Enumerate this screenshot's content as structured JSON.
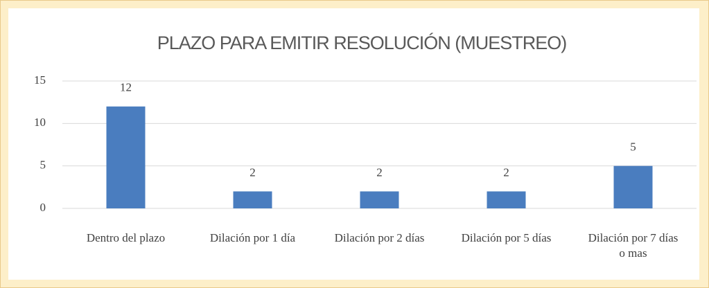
{
  "chart_data": {
    "type": "bar",
    "title": "PLAZO PARA EMITIR RESOLUCIÓN (MUESTREO)",
    "categories": [
      "Dentro del plazo",
      "Dilación por 1 día",
      "Dilación por 2 días",
      "Dilación por 5 días",
      "Dilación por 7 días o mas"
    ],
    "values": [
      12,
      2,
      2,
      2,
      5
    ],
    "color": "#4a7dbf",
    "ylim": [
      0,
      15
    ],
    "yticks": [
      0,
      5,
      10,
      15
    ],
    "grid": true,
    "data_labels": true
  }
}
